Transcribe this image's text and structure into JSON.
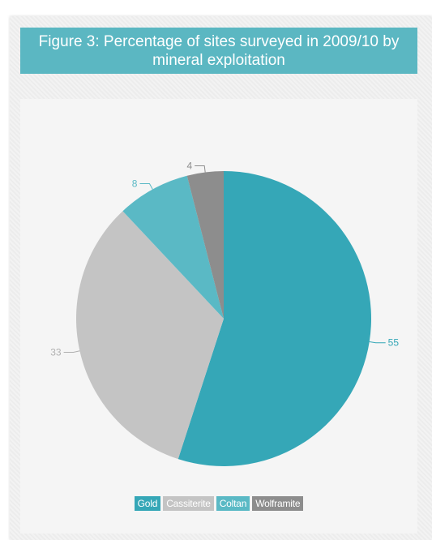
{
  "title": "Figure 3: Percentage of sites surveyed in 2009/10 by mineral exploitation",
  "chart_data": {
    "type": "pie",
    "title": "Figure 3: Percentage of sites surveyed in 2009/10 by mineral exploitation",
    "categories": [
      "Gold",
      "Cassiterite",
      "Coltan",
      "Wolframite"
    ],
    "values": [
      55,
      33,
      8,
      4
    ],
    "colors": [
      "#35a7b7",
      "#c4c4c4",
      "#5ab9c5",
      "#8d8d8d"
    ],
    "label_colors": [
      "#35a7b7",
      "#b0b0b0",
      "#5ab9c5",
      "#8d8d8d"
    ],
    "legend_placement": "bottom-center",
    "start_angle": "top, clockwise"
  }
}
